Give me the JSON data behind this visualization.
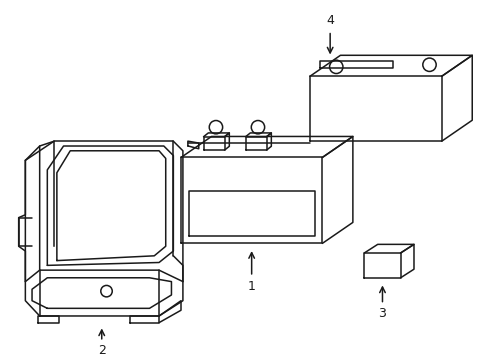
{
  "background_color": "#ffffff",
  "line_color": "#1a1a1a",
  "line_width": 1.1,
  "fig_width": 4.89,
  "fig_height": 3.6,
  "dpi": 100,
  "label_fontsize": 9
}
